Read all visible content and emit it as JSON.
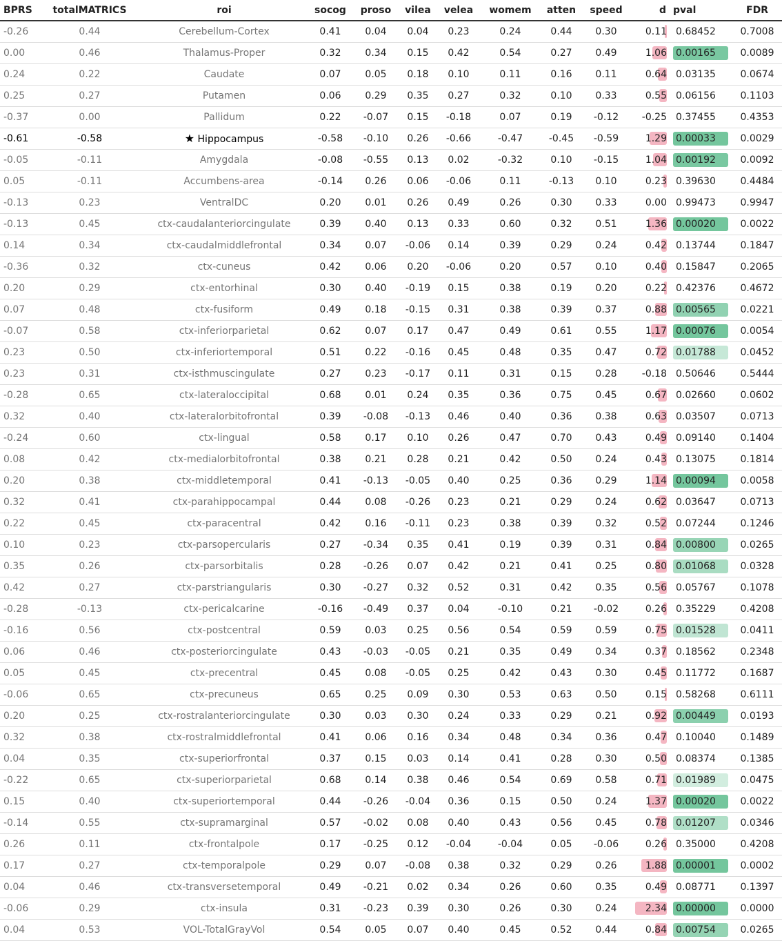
{
  "columns": [
    "BPRS",
    "totalMATRICS",
    "roi",
    "socog",
    "proso",
    "vilea",
    "velea",
    "womem",
    "atten",
    "speed",
    "d",
    "pval",
    "FDR"
  ],
  "highlight_color": "#74c69d",
  "d_bar_color": "#f4b6c2",
  "rows": [
    {
      "BPRS": "-0.26",
      "total": "0.44",
      "roi": "Cerebellum-Cortex",
      "socog": "0.41",
      "proso": "0.04",
      "vilea": "0.04",
      "velea": "0.23",
      "womem": "0.24",
      "atten": "0.44",
      "speed": "0.30",
      "d": "0.11",
      "pval": "0.68452",
      "fdr": "0.7008",
      "d_val": 0.11,
      "p_strength": 0
    },
    {
      "BPRS": "0.00",
      "total": "0.46",
      "roi": "Thalamus-Proper",
      "socog": "0.32",
      "proso": "0.34",
      "vilea": "0.15",
      "velea": "0.42",
      "womem": "0.54",
      "atten": "0.27",
      "speed": "0.49",
      "d": "1.06",
      "pval": "0.00165",
      "fdr": "0.0089",
      "d_val": 1.06,
      "p_strength": 0.95
    },
    {
      "BPRS": "0.24",
      "total": "0.22",
      "roi": "Caudate",
      "socog": "0.07",
      "proso": "0.05",
      "vilea": "0.18",
      "velea": "0.10",
      "womem": "0.11",
      "atten": "0.16",
      "speed": "0.11",
      "d": "0.64",
      "pval": "0.03135",
      "fdr": "0.0674",
      "d_val": 0.64,
      "p_strength": 0
    },
    {
      "BPRS": "0.25",
      "total": "0.27",
      "roi": "Putamen",
      "socog": "0.06",
      "proso": "0.29",
      "vilea": "0.35",
      "velea": "0.27",
      "womem": "0.32",
      "atten": "0.10",
      "speed": "0.33",
      "d": "0.55",
      "pval": "0.06156",
      "fdr": "0.1103",
      "d_val": 0.55,
      "p_strength": 0
    },
    {
      "BPRS": "-0.37",
      "total": "0.00",
      "roi": "Pallidum",
      "socog": "0.22",
      "proso": "-0.07",
      "vilea": "0.15",
      "velea": "-0.18",
      "womem": "0.07",
      "atten": "0.19",
      "speed": "-0.12",
      "d": "-0.25",
      "pval": "0.37455",
      "fdr": "0.4353",
      "d_val": -0.25,
      "p_strength": 0
    },
    {
      "BPRS": "-0.61",
      "total": "-0.58",
      "roi": "Hippocampus",
      "star": "★",
      "socog": "-0.58",
      "proso": "-0.10",
      "vilea": "0.26",
      "velea": "-0.66",
      "womem": "-0.47",
      "atten": "-0.45",
      "speed": "-0.59",
      "d": "1.29",
      "pval": "0.00033",
      "fdr": "0.0029",
      "d_val": 1.29,
      "p_strength": 1,
      "highlight": true
    },
    {
      "BPRS": "-0.05",
      "total": "-0.11",
      "roi": "Amygdala",
      "socog": "-0.08",
      "proso": "-0.55",
      "vilea": "0.13",
      "velea": "0.02",
      "womem": "-0.32",
      "atten": "0.10",
      "speed": "-0.15",
      "d": "1.04",
      "pval": "0.00192",
      "fdr": "0.0092",
      "d_val": 1.04,
      "p_strength": 0.95
    },
    {
      "BPRS": "0.05",
      "total": "-0.11",
      "roi": "Accumbens-area",
      "socog": "-0.14",
      "proso": "0.26",
      "vilea": "0.06",
      "velea": "-0.06",
      "womem": "0.11",
      "atten": "-0.13",
      "speed": "0.10",
      "d": "0.23",
      "pval": "0.39630",
      "fdr": "0.4484",
      "d_val": 0.23,
      "p_strength": 0
    },
    {
      "BPRS": "-0.13",
      "total": "0.23",
      "roi": "VentralDC",
      "socog": "0.20",
      "proso": "0.01",
      "vilea": "0.26",
      "velea": "0.49",
      "womem": "0.26",
      "atten": "0.30",
      "speed": "0.33",
      "d": "0.00",
      "pval": "0.99473",
      "fdr": "0.9947",
      "d_val": 0.0,
      "p_strength": 0
    },
    {
      "BPRS": "-0.13",
      "total": "0.45",
      "roi": "ctx-caudalanteriorcingulate",
      "socog": "0.39",
      "proso": "0.40",
      "vilea": "0.13",
      "velea": "0.33",
      "womem": "0.60",
      "atten": "0.32",
      "speed": "0.51",
      "d": "1.36",
      "pval": "0.00020",
      "fdr": "0.0022",
      "d_val": 1.36,
      "p_strength": 1
    },
    {
      "BPRS": "0.14",
      "total": "0.34",
      "roi": "ctx-caudalmiddlefrontal",
      "socog": "0.34",
      "proso": "0.07",
      "vilea": "-0.06",
      "velea": "0.14",
      "womem": "0.39",
      "atten": "0.29",
      "speed": "0.24",
      "d": "0.42",
      "pval": "0.13744",
      "fdr": "0.1847",
      "d_val": 0.42,
      "p_strength": 0
    },
    {
      "BPRS": "-0.36",
      "total": "0.32",
      "roi": "ctx-cuneus",
      "socog": "0.42",
      "proso": "0.06",
      "vilea": "0.20",
      "velea": "-0.06",
      "womem": "0.20",
      "atten": "0.57",
      "speed": "0.10",
      "d": "0.40",
      "pval": "0.15847",
      "fdr": "0.2065",
      "d_val": 0.4,
      "p_strength": 0
    },
    {
      "BPRS": "0.20",
      "total": "0.29",
      "roi": "ctx-entorhinal",
      "socog": "0.30",
      "proso": "0.40",
      "vilea": "-0.19",
      "velea": "0.15",
      "womem": "0.38",
      "atten": "0.19",
      "speed": "0.20",
      "d": "0.22",
      "pval": "0.42376",
      "fdr": "0.4672",
      "d_val": 0.22,
      "p_strength": 0
    },
    {
      "BPRS": "0.07",
      "total": "0.48",
      "roi": "ctx-fusiform",
      "socog": "0.49",
      "proso": "0.18",
      "vilea": "-0.15",
      "velea": "0.31",
      "womem": "0.38",
      "atten": "0.39",
      "speed": "0.37",
      "d": "0.88",
      "pval": "0.00565",
      "fdr": "0.0221",
      "d_val": 0.88,
      "p_strength": 0.75
    },
    {
      "BPRS": "-0.07",
      "total": "0.58",
      "roi": "ctx-inferiorparietal",
      "socog": "0.62",
      "proso": "0.07",
      "vilea": "0.17",
      "velea": "0.47",
      "womem": "0.49",
      "atten": "0.61",
      "speed": "0.55",
      "d": "1.17",
      "pval": "0.00076",
      "fdr": "0.0054",
      "d_val": 1.17,
      "p_strength": 1
    },
    {
      "BPRS": "0.23",
      "total": "0.50",
      "roi": "ctx-inferiortemporal",
      "socog": "0.51",
      "proso": "0.22",
      "vilea": "-0.16",
      "velea": "0.45",
      "womem": "0.48",
      "atten": "0.35",
      "speed": "0.47",
      "d": "0.72",
      "pval": "0.01788",
      "fdr": "0.0452",
      "d_val": 0.72,
      "p_strength": 0.3
    },
    {
      "BPRS": "0.23",
      "total": "0.31",
      "roi": "ctx-isthmuscingulate",
      "socog": "0.27",
      "proso": "0.23",
      "vilea": "-0.17",
      "velea": "0.11",
      "womem": "0.31",
      "atten": "0.15",
      "speed": "0.28",
      "d": "-0.18",
      "pval": "0.50646",
      "fdr": "0.5444",
      "d_val": -0.18,
      "p_strength": 0
    },
    {
      "BPRS": "-0.28",
      "total": "0.65",
      "roi": "ctx-lateraloccipital",
      "socog": "0.68",
      "proso": "0.01",
      "vilea": "0.24",
      "velea": "0.35",
      "womem": "0.36",
      "atten": "0.75",
      "speed": "0.45",
      "d": "0.67",
      "pval": "0.02660",
      "fdr": "0.0602",
      "d_val": 0.67,
      "p_strength": 0
    },
    {
      "BPRS": "0.32",
      "total": "0.40",
      "roi": "ctx-lateralorbitofrontal",
      "socog": "0.39",
      "proso": "-0.08",
      "vilea": "-0.13",
      "velea": "0.46",
      "womem": "0.40",
      "atten": "0.36",
      "speed": "0.38",
      "d": "0.63",
      "pval": "0.03507",
      "fdr": "0.0713",
      "d_val": 0.63,
      "p_strength": 0
    },
    {
      "BPRS": "-0.24",
      "total": "0.60",
      "roi": "ctx-lingual",
      "socog": "0.58",
      "proso": "0.17",
      "vilea": "0.10",
      "velea": "0.26",
      "womem": "0.47",
      "atten": "0.70",
      "speed": "0.43",
      "d": "0.49",
      "pval": "0.09140",
      "fdr": "0.1404",
      "d_val": 0.49,
      "p_strength": 0
    },
    {
      "BPRS": "0.08",
      "total": "0.42",
      "roi": "ctx-medialorbitofrontal",
      "socog": "0.38",
      "proso": "0.21",
      "vilea": "0.28",
      "velea": "0.21",
      "womem": "0.42",
      "atten": "0.50",
      "speed": "0.24",
      "d": "0.43",
      "pval": "0.13075",
      "fdr": "0.1814",
      "d_val": 0.43,
      "p_strength": 0
    },
    {
      "BPRS": "0.20",
      "total": "0.38",
      "roi": "ctx-middletemporal",
      "socog": "0.41",
      "proso": "-0.13",
      "vilea": "-0.05",
      "velea": "0.40",
      "womem": "0.25",
      "atten": "0.36",
      "speed": "0.29",
      "d": "1.14",
      "pval": "0.00094",
      "fdr": "0.0058",
      "d_val": 1.14,
      "p_strength": 1
    },
    {
      "BPRS": "0.32",
      "total": "0.41",
      "roi": "ctx-parahippocampal",
      "socog": "0.44",
      "proso": "0.08",
      "vilea": "-0.26",
      "velea": "0.23",
      "womem": "0.21",
      "atten": "0.29",
      "speed": "0.24",
      "d": "0.62",
      "pval": "0.03647",
      "fdr": "0.0713",
      "d_val": 0.62,
      "p_strength": 0
    },
    {
      "BPRS": "0.22",
      "total": "0.45",
      "roi": "ctx-paracentral",
      "socog": "0.42",
      "proso": "0.16",
      "vilea": "-0.11",
      "velea": "0.23",
      "womem": "0.38",
      "atten": "0.39",
      "speed": "0.32",
      "d": "0.52",
      "pval": "0.07244",
      "fdr": "0.1246",
      "d_val": 0.52,
      "p_strength": 0
    },
    {
      "BPRS": "0.10",
      "total": "0.23",
      "roi": "ctx-parsopercularis",
      "socog": "0.27",
      "proso": "-0.34",
      "vilea": "0.35",
      "velea": "0.41",
      "womem": "0.19",
      "atten": "0.39",
      "speed": "0.31",
      "d": "0.84",
      "pval": "0.00800",
      "fdr": "0.0265",
      "d_val": 0.84,
      "p_strength": 0.7
    },
    {
      "BPRS": "0.35",
      "total": "0.26",
      "roi": "ctx-parsorbitalis",
      "socog": "0.28",
      "proso": "-0.26",
      "vilea": "0.07",
      "velea": "0.42",
      "womem": "0.21",
      "atten": "0.41",
      "speed": "0.25",
      "d": "0.80",
      "pval": "0.01068",
      "fdr": "0.0328",
      "d_val": 0.8,
      "p_strength": 0.55
    },
    {
      "BPRS": "0.42",
      "total": "0.27",
      "roi": "ctx-parstriangularis",
      "socog": "0.30",
      "proso": "-0.27",
      "vilea": "0.32",
      "velea": "0.52",
      "womem": "0.31",
      "atten": "0.42",
      "speed": "0.35",
      "d": "0.56",
      "pval": "0.05767",
      "fdr": "0.1078",
      "d_val": 0.56,
      "p_strength": 0
    },
    {
      "BPRS": "-0.28",
      "total": "-0.13",
      "roi": "ctx-pericalcarine",
      "socog": "-0.16",
      "proso": "-0.49",
      "vilea": "0.37",
      "velea": "0.04",
      "womem": "-0.10",
      "atten": "0.21",
      "speed": "-0.02",
      "d": "0.26",
      "pval": "0.35229",
      "fdr": "0.4208",
      "d_val": 0.26,
      "p_strength": 0
    },
    {
      "BPRS": "-0.16",
      "total": "0.56",
      "roi": "ctx-postcentral",
      "socog": "0.59",
      "proso": "0.03",
      "vilea": "0.25",
      "velea": "0.56",
      "womem": "0.54",
      "atten": "0.59",
      "speed": "0.59",
      "d": "0.75",
      "pval": "0.01528",
      "fdr": "0.0411",
      "d_val": 0.75,
      "p_strength": 0.35
    },
    {
      "BPRS": "0.06",
      "total": "0.46",
      "roi": "ctx-posteriorcingulate",
      "socog": "0.43",
      "proso": "-0.03",
      "vilea": "-0.05",
      "velea": "0.21",
      "womem": "0.35",
      "atten": "0.49",
      "speed": "0.34",
      "d": "0.37",
      "pval": "0.18562",
      "fdr": "0.2348",
      "d_val": 0.37,
      "p_strength": 0
    },
    {
      "BPRS": "0.05",
      "total": "0.45",
      "roi": "ctx-precentral",
      "socog": "0.45",
      "proso": "0.08",
      "vilea": "-0.05",
      "velea": "0.25",
      "womem": "0.42",
      "atten": "0.43",
      "speed": "0.30",
      "d": "0.45",
      "pval": "0.11772",
      "fdr": "0.1687",
      "d_val": 0.45,
      "p_strength": 0
    },
    {
      "BPRS": "-0.06",
      "total": "0.65",
      "roi": "ctx-precuneus",
      "socog": "0.65",
      "proso": "0.25",
      "vilea": "0.09",
      "velea": "0.30",
      "womem": "0.53",
      "atten": "0.63",
      "speed": "0.50",
      "d": "0.15",
      "pval": "0.58268",
      "fdr": "0.6111",
      "d_val": 0.15,
      "p_strength": 0
    },
    {
      "BPRS": "0.20",
      "total": "0.25",
      "roi": "ctx-rostralanteriorcingulate",
      "socog": "0.30",
      "proso": "0.03",
      "vilea": "0.30",
      "velea": "0.24",
      "womem": "0.33",
      "atten": "0.29",
      "speed": "0.21",
      "d": "0.92",
      "pval": "0.00449",
      "fdr": "0.0193",
      "d_val": 0.92,
      "p_strength": 0.8
    },
    {
      "BPRS": "0.32",
      "total": "0.38",
      "roi": "ctx-rostralmiddlefrontal",
      "socog": "0.41",
      "proso": "0.06",
      "vilea": "0.16",
      "velea": "0.34",
      "womem": "0.48",
      "atten": "0.34",
      "speed": "0.36",
      "d": "0.47",
      "pval": "0.10040",
      "fdr": "0.1489",
      "d_val": 0.47,
      "p_strength": 0
    },
    {
      "BPRS": "0.04",
      "total": "0.35",
      "roi": "ctx-superiorfrontal",
      "socog": "0.37",
      "proso": "0.15",
      "vilea": "0.03",
      "velea": "0.14",
      "womem": "0.41",
      "atten": "0.28",
      "speed": "0.30",
      "d": "0.50",
      "pval": "0.08374",
      "fdr": "0.1385",
      "d_val": 0.5,
      "p_strength": 0
    },
    {
      "BPRS": "-0.22",
      "total": "0.65",
      "roi": "ctx-superiorparietal",
      "socog": "0.68",
      "proso": "0.14",
      "vilea": "0.38",
      "velea": "0.46",
      "womem": "0.54",
      "atten": "0.69",
      "speed": "0.58",
      "d": "0.71",
      "pval": "0.01989",
      "fdr": "0.0475",
      "d_val": 0.71,
      "p_strength": 0.2
    },
    {
      "BPRS": "0.15",
      "total": "0.40",
      "roi": "ctx-superiortemporal",
      "socog": "0.44",
      "proso": "-0.26",
      "vilea": "-0.04",
      "velea": "0.36",
      "womem": "0.15",
      "atten": "0.50",
      "speed": "0.24",
      "d": "1.37",
      "pval": "0.00020",
      "fdr": "0.0022",
      "d_val": 1.37,
      "p_strength": 1
    },
    {
      "BPRS": "-0.14",
      "total": "0.55",
      "roi": "ctx-supramarginal",
      "socog": "0.57",
      "proso": "-0.02",
      "vilea": "0.08",
      "velea": "0.40",
      "womem": "0.43",
      "atten": "0.56",
      "speed": "0.45",
      "d": "0.78",
      "pval": "0.01207",
      "fdr": "0.0346",
      "d_val": 0.78,
      "p_strength": 0.5
    },
    {
      "BPRS": "0.26",
      "total": "0.11",
      "roi": "ctx-frontalpole",
      "socog": "0.17",
      "proso": "-0.25",
      "vilea": "0.12",
      "velea": "-0.04",
      "womem": "-0.04",
      "atten": "0.05",
      "speed": "-0.06",
      "d": "0.26",
      "pval": "0.35000",
      "fdr": "0.4208",
      "d_val": 0.26,
      "p_strength": 0
    },
    {
      "BPRS": "0.17",
      "total": "0.27",
      "roi": "ctx-temporalpole",
      "socog": "0.29",
      "proso": "0.07",
      "vilea": "-0.08",
      "velea": "0.38",
      "womem": "0.32",
      "atten": "0.29",
      "speed": "0.26",
      "d": "1.88",
      "pval": "0.00001",
      "fdr": "0.0002",
      "d_val": 1.88,
      "p_strength": 1
    },
    {
      "BPRS": "0.04",
      "total": "0.46",
      "roi": "ctx-transversetemporal",
      "socog": "0.49",
      "proso": "-0.21",
      "vilea": "0.02",
      "velea": "0.34",
      "womem": "0.26",
      "atten": "0.60",
      "speed": "0.35",
      "d": "0.49",
      "pval": "0.08771",
      "fdr": "0.1397",
      "d_val": 0.49,
      "p_strength": 0
    },
    {
      "BPRS": "-0.06",
      "total": "0.29",
      "roi": "ctx-insula",
      "socog": "0.31",
      "proso": "-0.23",
      "vilea": "0.39",
      "velea": "0.30",
      "womem": "0.26",
      "atten": "0.30",
      "speed": "0.24",
      "d": "2.34",
      "pval": "0.00000",
      "fdr": "0.0000",
      "d_val": 2.34,
      "p_strength": 1
    },
    {
      "BPRS": "0.04",
      "total": "0.53",
      "roi": "VOL-TotalGrayVol",
      "socog": "0.54",
      "proso": "0.05",
      "vilea": "0.07",
      "velea": "0.40",
      "womem": "0.45",
      "atten": "0.52",
      "speed": "0.44",
      "d": "0.84",
      "pval": "0.00754",
      "fdr": "0.0265",
      "d_val": 0.84,
      "p_strength": 0.72
    }
  ]
}
